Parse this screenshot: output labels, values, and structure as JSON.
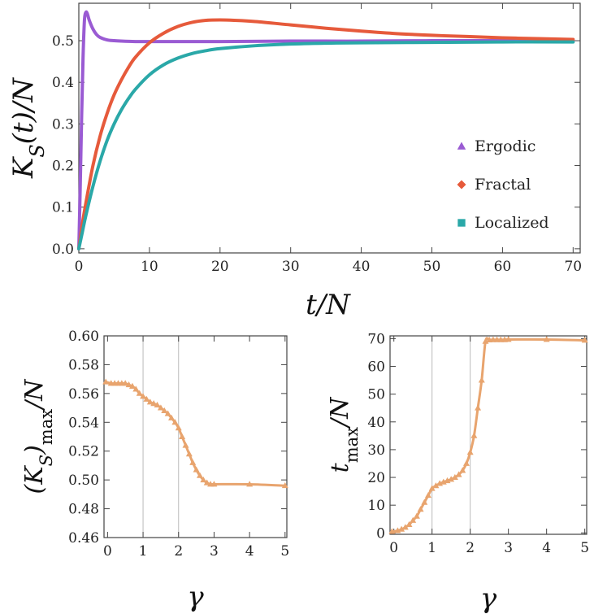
{
  "chart_data": [
    {
      "type": "line",
      "title": "",
      "xlabel": "t/N",
      "ylabel": "K_S(t)/N",
      "xlim": [
        0,
        71
      ],
      "ylim": [
        -0.01,
        0.59
      ],
      "xticks": [
        0,
        10,
        20,
        30,
        40,
        50,
        60,
        70
      ],
      "xtick_labels": [
        "0",
        "10",
        "20",
        "30",
        "40",
        "50",
        "60",
        "70"
      ],
      "yticks": [
        0.0,
        0.1,
        0.2,
        0.3,
        0.4,
        0.5
      ],
      "ytick_labels": [
        "0.0",
        "0.1",
        "0.2",
        "0.3",
        "0.4",
        "0.5"
      ],
      "grid": false,
      "legend_position": "right",
      "series": [
        {
          "name": "Ergodic",
          "color": "#9a5bd3",
          "marker": "triangle",
          "x": [
            0,
            0.2,
            0.4,
            0.6,
            0.8,
            1.0,
            1.2,
            1.5,
            2,
            2.5,
            3,
            4,
            5,
            6,
            8,
            10,
            15,
            20,
            30,
            40,
            50,
            60,
            70
          ],
          "y": [
            0.0,
            0.15,
            0.32,
            0.46,
            0.55,
            0.568,
            0.565,
            0.548,
            0.528,
            0.515,
            0.508,
            0.502,
            0.5,
            0.499,
            0.498,
            0.498,
            0.498,
            0.498,
            0.499,
            0.499,
            0.5,
            0.5,
            0.5
          ]
        },
        {
          "name": "Fractal",
          "color": "#e65a3b",
          "marker": "diamond",
          "x": [
            0,
            0.5,
            1,
            2,
            3,
            4,
            5,
            6,
            7,
            8,
            10,
            12,
            14,
            16,
            18,
            20,
            22,
            25,
            30,
            35,
            40,
            45,
            50,
            55,
            60,
            65,
            70
          ],
          "y": [
            0.0,
            0.06,
            0.11,
            0.2,
            0.27,
            0.325,
            0.37,
            0.405,
            0.435,
            0.46,
            0.495,
            0.518,
            0.534,
            0.544,
            0.549,
            0.55,
            0.549,
            0.546,
            0.538,
            0.53,
            0.523,
            0.517,
            0.513,
            0.51,
            0.507,
            0.505,
            0.503
          ]
        },
        {
          "name": "Localized",
          "color": "#2aa8a8",
          "marker": "square",
          "x": [
            0,
            0.5,
            1,
            2,
            3,
            4,
            5,
            6,
            7,
            8,
            10,
            12,
            14,
            16,
            18,
            20,
            25,
            30,
            35,
            40,
            50,
            60,
            70
          ],
          "y": [
            0.0,
            0.04,
            0.08,
            0.15,
            0.21,
            0.26,
            0.3,
            0.333,
            0.36,
            0.383,
            0.418,
            0.442,
            0.458,
            0.469,
            0.476,
            0.481,
            0.488,
            0.492,
            0.494,
            0.495,
            0.496,
            0.497,
            0.497
          ]
        }
      ]
    },
    {
      "type": "line",
      "title": "",
      "xlabel": "γ",
      "ylabel": "(K_S)_max/N",
      "xlim": [
        -0.1,
        5.05
      ],
      "ylim": [
        0.46,
        0.6
      ],
      "xticks": [
        0,
        1,
        2,
        3,
        4,
        5
      ],
      "xtick_labels": [
        "0",
        "1",
        "2",
        "3",
        "4",
        "5"
      ],
      "yticks": [
        0.46,
        0.48,
        0.5,
        0.52,
        0.54,
        0.56,
        0.58,
        0.6
      ],
      "ytick_labels": [
        "0.46",
        "0.48",
        "0.50",
        "0.52",
        "0.54",
        "0.56",
        "0.58",
        "0.60"
      ],
      "vertical_lines": [
        1,
        2
      ],
      "grid": false,
      "series": [
        {
          "color": "#e8a46e",
          "marker": "triangle",
          "x": [
            -0.05,
            0.1,
            0.2,
            0.3,
            0.4,
            0.5,
            0.6,
            0.7,
            0.8,
            0.9,
            1.0,
            1.1,
            1.2,
            1.3,
            1.4,
            1.5,
            1.6,
            1.7,
            1.8,
            1.9,
            2.0,
            2.1,
            2.2,
            2.3,
            2.4,
            2.5,
            2.6,
            2.7,
            2.8,
            2.9,
            3.0,
            4.0,
            5.0
          ],
          "y": [
            0.568,
            0.567,
            0.567,
            0.567,
            0.567,
            0.567,
            0.566,
            0.565,
            0.563,
            0.56,
            0.558,
            0.556,
            0.554,
            0.553,
            0.552,
            0.55,
            0.548,
            0.546,
            0.543,
            0.54,
            0.536,
            0.53,
            0.524,
            0.518,
            0.512,
            0.507,
            0.503,
            0.5,
            0.498,
            0.497,
            0.497,
            0.497,
            0.496
          ]
        }
      ]
    },
    {
      "type": "line",
      "title": "",
      "xlabel": "γ",
      "ylabel": "t_max/N",
      "xlim": [
        -0.1,
        5.05
      ],
      "ylim": [
        -0.5,
        71
      ],
      "xticks": [
        0,
        1,
        2,
        3,
        4,
        5
      ],
      "xtick_labels": [
        "0",
        "1",
        "2",
        "3",
        "4",
        "5"
      ],
      "yticks": [
        0,
        10,
        20,
        30,
        40,
        50,
        60,
        70
      ],
      "ytick_labels": [
        "0",
        "10",
        "20",
        "30",
        "40",
        "50",
        "60",
        "70"
      ],
      "vertical_lines": [
        1,
        2
      ],
      "grid": false,
      "series": [
        {
          "color": "#e8a46e",
          "marker": "triangle",
          "x": [
            -0.05,
            0.1,
            0.2,
            0.3,
            0.4,
            0.5,
            0.6,
            0.7,
            0.8,
            0.9,
            1.0,
            1.1,
            1.2,
            1.3,
            1.4,
            1.5,
            1.6,
            1.7,
            1.8,
            1.9,
            2.0,
            2.1,
            2.2,
            2.3,
            2.4,
            2.5,
            2.6,
            2.7,
            2.8,
            2.9,
            3.0,
            4.0,
            5.0
          ],
          "y": [
            0.5,
            0.8,
            1.3,
            2.0,
            3.0,
            4.5,
            6.0,
            8.5,
            11.0,
            13.5,
            16.0,
            17.0,
            17.8,
            18.3,
            18.8,
            19.3,
            20.0,
            21.0,
            22.5,
            25.0,
            29.0,
            35.0,
            45.0,
            55.0,
            69.0,
            69.5,
            69.6,
            69.6,
            69.6,
            69.6,
            69.7,
            69.7,
            69.4
          ]
        }
      ]
    }
  ]
}
